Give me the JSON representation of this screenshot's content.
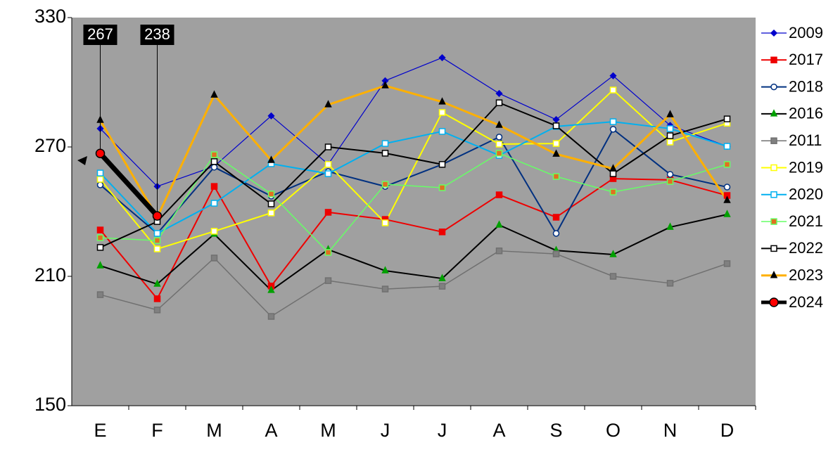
{
  "chart_data": {
    "type": "line",
    "categories": [
      "E",
      "F",
      "M",
      "A",
      "M",
      "J",
      "J",
      "A",
      "S",
      "O",
      "N",
      "D"
    ],
    "ylim": [
      150,
      330
    ],
    "yticks": [
      150,
      210,
      270,
      330
    ],
    "plot_background": "#a0a0a0",
    "legend": "right",
    "series": [
      {
        "name": "2009",
        "color": "#0000cc",
        "marker": "diamond",
        "marker_fill": "#0000cc",
        "line_width": 1.2,
        "values": [
          278.5,
          251.7,
          261,
          284.4,
          262,
          300.7,
          311.4,
          294.8,
          282.7,
          303,
          280,
          270.3
        ]
      },
      {
        "name": "2017",
        "color": "#ee0000",
        "marker": "square",
        "marker_fill": "#ee0000",
        "line_width": 2,
        "values": [
          231.5,
          199.6,
          251.7,
          205.5,
          239.7,
          236.4,
          230.6,
          247.8,
          237.4,
          255.3,
          254.7,
          247.5
        ]
      },
      {
        "name": "2018",
        "color": "#003080",
        "marker": "circle",
        "marker_fill": "#ffffff",
        "line_width": 2,
        "values": [
          252.4,
          229.9,
          260.6,
          247.2,
          258.6,
          251.7,
          261.9,
          274.6,
          229.9,
          278.2,
          257.3,
          251.4
        ]
      },
      {
        "name": "2016",
        "color": "#000000",
        "marker": "triangle",
        "marker_fill": "#00a000",
        "line_width": 2,
        "values": [
          214.9,
          206.4,
          229.6,
          203.5,
          222.4,
          212.6,
          209,
          233.8,
          222,
          220.1,
          232.8,
          238.7
        ]
      },
      {
        "name": "2011",
        "color": "#707070",
        "marker": "square",
        "marker_fill": "#808080",
        "line_width": 1.5,
        "values": [
          201.5,
          194.4,
          218.5,
          191.4,
          208,
          204.1,
          205.4,
          221.8,
          220.4,
          210,
          206.8,
          215.9
        ]
      },
      {
        "name": "2019",
        "color": "#ffff00",
        "marker": "square",
        "marker_fill": "#ffffff",
        "line_width": 2,
        "values": [
          255,
          222.7,
          230.9,
          239.4,
          261.9,
          234.8,
          286,
          271.3,
          271.6,
          296.4,
          272.3,
          281
        ]
      },
      {
        "name": "2020",
        "color": "#00b0f0",
        "marker": "square",
        "marker_fill": "#ffffff",
        "line_width": 2,
        "values": [
          257.9,
          229.9,
          243.9,
          262.2,
          257.6,
          271.6,
          277.2,
          266.1,
          279.5,
          281.7,
          278.5,
          270.3
        ]
      },
      {
        "name": "2021",
        "color": "#66ff66",
        "marker": "square",
        "marker_fill": "#e07020",
        "line_width": 1.5,
        "values": [
          227.9,
          226.6,
          266.4,
          248.2,
          221.1,
          252.7,
          251.1,
          267.1,
          256.3,
          249.1,
          254,
          261.9
        ]
      },
      {
        "name": "2022",
        "color": "#000000",
        "marker": "square",
        "marker_fill": "#ffffff",
        "line_width": 2,
        "values": [
          223.4,
          235.4,
          263.2,
          243.6,
          270,
          267.1,
          261.9,
          290.5,
          279.8,
          257.6,
          275.2,
          283
        ]
      },
      {
        "name": "2023",
        "color": "#ffb000",
        "marker": "triangle",
        "marker_fill": "#000000",
        "line_width": 3,
        "values": [
          282.4,
          237.4,
          294.1,
          263.8,
          289.6,
          298.4,
          290.9,
          280.1,
          266.7,
          259.9,
          285,
          245.2
        ]
      },
      {
        "name": "2024",
        "color": "#000000",
        "marker": "circle",
        "marker_fill": "#ff0000",
        "line_width": 7,
        "show_labels": true,
        "values": [
          267,
          238,
          null,
          null,
          null,
          null,
          null,
          null,
          null,
          null,
          null,
          null
        ]
      }
    ]
  }
}
